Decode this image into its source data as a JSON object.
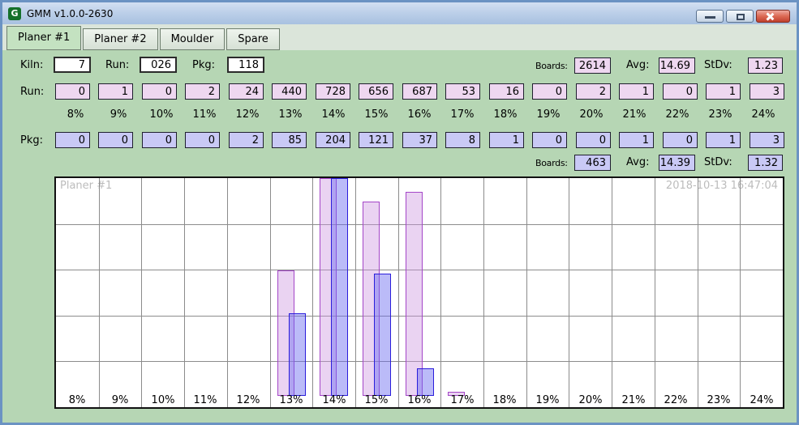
{
  "window": {
    "title": "GMM v1.0.0-2630",
    "icon": "G"
  },
  "tabs": [
    {
      "label": "Planer #1",
      "active": true
    },
    {
      "label": "Planer #2",
      "active": false
    },
    {
      "label": "Moulder",
      "active": false
    },
    {
      "label": "Spare",
      "active": false
    }
  ],
  "top_row": {
    "kiln_label": "Kiln:",
    "kiln_value": "7",
    "run_label": "Run:",
    "run_value": "026",
    "pkg_label": "Pkg:",
    "pkg_value": "118",
    "boards_label": "Boards:",
    "boards_value": "2614",
    "avg_label": "Avg:",
    "avg_value": "14.69",
    "stdv_label": "StDv:",
    "stdv_value": "1.23"
  },
  "run_row": {
    "label": "Run:",
    "values": [
      "0",
      "1",
      "0",
      "2",
      "24",
      "440",
      "728",
      "656",
      "687",
      "53",
      "16",
      "0",
      "2",
      "1",
      "0",
      "1",
      "3"
    ]
  },
  "pkg_row": {
    "label": "Pkg:",
    "values": [
      "0",
      "0",
      "0",
      "0",
      "2",
      "85",
      "204",
      "121",
      "37",
      "8",
      "1",
      "0",
      "0",
      "1",
      "0",
      "1",
      "3"
    ]
  },
  "percent_labels": [
    "8%",
    "9%",
    "10%",
    "11%",
    "12%",
    "13%",
    "14%",
    "15%",
    "16%",
    "17%",
    "18%",
    "19%",
    "20%",
    "21%",
    "22%",
    "23%",
    "24%"
  ],
  "pkg_summary": {
    "boards_label": "Boards:",
    "boards_value": "463",
    "avg_label": "Avg:",
    "avg_value": "14.39",
    "stdv_label": "StDv:",
    "stdv_value": "1.32"
  },
  "chart_data": {
    "type": "bar",
    "title": "Planer #1",
    "timestamp": "2018-10-13 16:47:04",
    "categories": [
      "8%",
      "9%",
      "10%",
      "11%",
      "12%",
      "13%",
      "14%",
      "15%",
      "16%",
      "17%",
      "18%",
      "19%",
      "20%",
      "21%",
      "22%",
      "23%",
      "24%"
    ],
    "series": [
      {
        "name": "Run",
        "values": [
          0,
          1,
          0,
          2,
          24,
          440,
          728,
          656,
          687,
          53,
          16,
          0,
          2,
          1,
          0,
          1,
          3
        ]
      },
      {
        "name": "Pkg",
        "values": [
          0,
          0,
          0,
          0,
          2,
          85,
          204,
          121,
          37,
          8,
          1,
          0,
          0,
          1,
          0,
          1,
          3
        ]
      }
    ],
    "grid_rows": 5,
    "legend": "none",
    "display_height_frac": {
      "run": [
        0,
        0,
        0,
        0,
        0,
        0.576,
        1,
        0.892,
        0.937,
        0.019,
        0,
        0,
        0,
        0,
        0,
        0,
        0
      ],
      "pkg": [
        0,
        0,
        0,
        0,
        0,
        0.379,
        1,
        0.561,
        0.126,
        0,
        0,
        0,
        0,
        0,
        0,
        0,
        0
      ]
    }
  },
  "colors": {
    "bg_green": "#b6d6b4",
    "tab_active": "#c4e2c1",
    "run_field": "#eed7f0",
    "pkg_field": "#c9c9f5",
    "run_bar_fill": "rgba(205,150,225,0.42)",
    "run_bar_border": "#a446c8",
    "pkg_bar_fill": "rgba(105,105,240,0.45)",
    "pkg_bar_border": "#2a1ddb"
  }
}
